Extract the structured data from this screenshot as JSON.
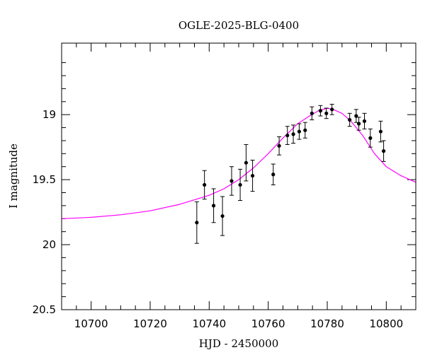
{
  "chart_data": {
    "type": "scatter",
    "title": "OGLE-2025-BLG-0400",
    "xlabel": "HJD - 2450000",
    "ylabel": "I magnitude",
    "xlim": [
      10690,
      10810
    ],
    "ylim": [
      20.5,
      18.45
    ],
    "y_inverted": true,
    "grid": false,
    "x_ticks": [
      10700,
      10720,
      10740,
      10760,
      10780,
      10800
    ],
    "x_tick_labels": [
      "10700",
      "10720",
      "10740",
      "10760",
      "10780",
      "10800"
    ],
    "y_ticks": [
      19,
      19.5,
      20,
      20.5
    ],
    "y_tick_labels": [
      "19",
      "19.5",
      "20",
      "20.5"
    ],
    "series": [
      {
        "kind": "points_with_errorbars",
        "color": "#000000",
        "points": [
          {
            "x": 10735.8,
            "y": 19.83,
            "err": 0.16
          },
          {
            "x": 10738.4,
            "y": 19.54,
            "err": 0.11
          },
          {
            "x": 10741.5,
            "y": 19.7,
            "err": 0.13
          },
          {
            "x": 10744.5,
            "y": 19.78,
            "err": 0.15
          },
          {
            "x": 10747.6,
            "y": 19.51,
            "err": 0.11
          },
          {
            "x": 10750.5,
            "y": 19.54,
            "err": 0.12
          },
          {
            "x": 10752.5,
            "y": 19.37,
            "err": 0.14
          },
          {
            "x": 10754.7,
            "y": 19.47,
            "err": 0.12
          },
          {
            "x": 10761.7,
            "y": 19.46,
            "err": 0.08
          },
          {
            "x": 10763.7,
            "y": 19.24,
            "err": 0.07
          },
          {
            "x": 10766.5,
            "y": 19.16,
            "err": 0.07
          },
          {
            "x": 10768.5,
            "y": 19.15,
            "err": 0.07
          },
          {
            "x": 10770.5,
            "y": 19.13,
            "err": 0.06
          },
          {
            "x": 10772.5,
            "y": 19.12,
            "err": 0.06
          },
          {
            "x": 10774.8,
            "y": 18.99,
            "err": 0.05
          },
          {
            "x": 10777.7,
            "y": 18.97,
            "err": 0.04
          },
          {
            "x": 10779.7,
            "y": 18.99,
            "err": 0.04
          },
          {
            "x": 10781.6,
            "y": 18.96,
            "err": 0.04
          },
          {
            "x": 10787.6,
            "y": 19.04,
            "err": 0.05
          },
          {
            "x": 10789.8,
            "y": 19.01,
            "err": 0.05
          },
          {
            "x": 10790.7,
            "y": 19.07,
            "err": 0.05
          },
          {
            "x": 10792.6,
            "y": 19.05,
            "err": 0.06
          },
          {
            "x": 10794.6,
            "y": 19.18,
            "err": 0.07
          },
          {
            "x": 10798.1,
            "y": 19.13,
            "err": 0.08
          },
          {
            "x": 10799.1,
            "y": 19.28,
            "err": 0.08
          }
        ]
      },
      {
        "kind": "model_curve",
        "color": "#ff00ff",
        "x": [
          10690,
          10700,
          10710,
          10720,
          10730,
          10740,
          10745,
          10750,
          10755,
          10760,
          10765,
          10770,
          10774,
          10777,
          10780,
          10782,
          10785,
          10788,
          10792,
          10796,
          10800,
          10805,
          10810
        ],
        "y": [
          19.8,
          19.79,
          19.77,
          19.74,
          19.69,
          19.62,
          19.57,
          19.5,
          19.41,
          19.3,
          19.18,
          19.07,
          19.01,
          18.97,
          18.95,
          18.96,
          18.99,
          19.05,
          19.16,
          19.3,
          19.4,
          19.47,
          19.52
        ]
      }
    ]
  }
}
